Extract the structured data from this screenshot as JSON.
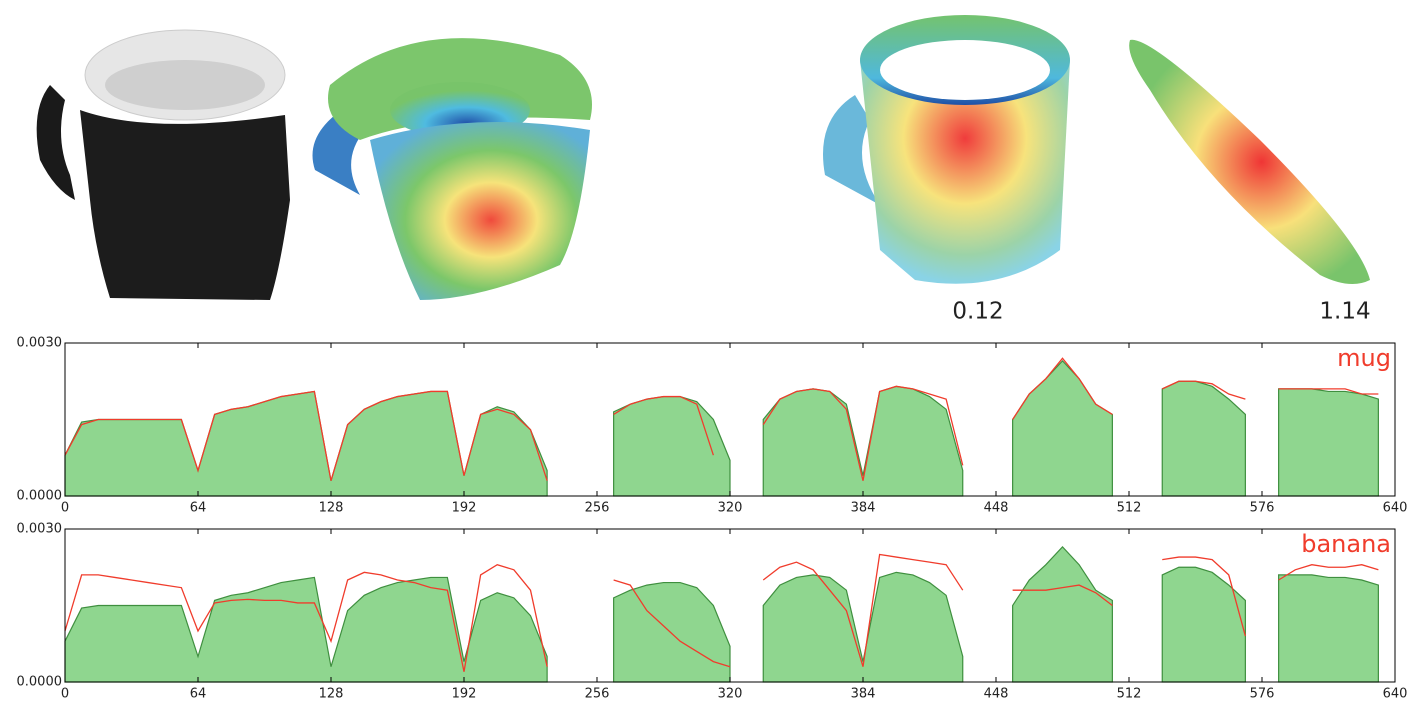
{
  "figure_labels": [
    "0.12",
    "1.14"
  ],
  "chart_data": [
    {
      "type": "area-line",
      "title": "mug",
      "title_color": "#f03c2c",
      "x": [
        0,
        8,
        16,
        24,
        32,
        40,
        48,
        56,
        64,
        72,
        80,
        88,
        96,
        104,
        112,
        120,
        128,
        136,
        144,
        152,
        160,
        168,
        176,
        184,
        192,
        200,
        208,
        216,
        224,
        232,
        240,
        248,
        256,
        264,
        272,
        280,
        288,
        296,
        304,
        312,
        320,
        328,
        336,
        344,
        352,
        360,
        368,
        376,
        384,
        392,
        400,
        408,
        416,
        424,
        432,
        440,
        448,
        456,
        464,
        472,
        480,
        488,
        496,
        504,
        512,
        520,
        528,
        536,
        544,
        552,
        560,
        568,
        576,
        584,
        592,
        600,
        608,
        616,
        624,
        632,
        640
      ],
      "series": [
        {
          "color": "#3f8f3f",
          "fill": "#8fd68f",
          "kind": "area",
          "values": [
            0.0008,
            0.00145,
            0.0015,
            0.0015,
            0.0015,
            0.0015,
            0.0015,
            0.0015,
            0.0005,
            0.0016,
            0.0017,
            0.00175,
            0.00185,
            0.00195,
            0.002,
            0.00205,
            0.0003,
            0.0014,
            0.0017,
            0.00185,
            0.00195,
            0.002,
            0.00205,
            0.00205,
            0.0004,
            0.0016,
            0.00175,
            0.00165,
            0.0013,
            0.0005,
            null,
            null,
            null,
            0.00165,
            0.0018,
            0.0019,
            0.00195,
            0.00195,
            0.00185,
            0.0015,
            0.0007,
            null,
            0.0015,
            0.0019,
            0.00205,
            0.0021,
            0.00205,
            0.0018,
            0.0004,
            0.00205,
            0.00215,
            0.0021,
            0.00195,
            0.0017,
            0.0005,
            null,
            null,
            0.0015,
            0.002,
            0.0023,
            0.00265,
            0.0023,
            0.0018,
            0.0016,
            null,
            null,
            0.0021,
            0.00225,
            0.00225,
            0.00215,
            0.0019,
            0.0016,
            null,
            0.0021,
            0.0021,
            0.0021,
            0.00205,
            0.00205,
            0.002,
            0.0019,
            null
          ]
        },
        {
          "color": "#f03c2c",
          "kind": "line",
          "values": [
            0.0008,
            0.0014,
            0.0015,
            0.0015,
            0.0015,
            0.0015,
            0.0015,
            0.0015,
            0.0005,
            0.0016,
            0.0017,
            0.00175,
            0.00185,
            0.00195,
            0.002,
            0.00205,
            0.0003,
            0.0014,
            0.0017,
            0.00185,
            0.00195,
            0.002,
            0.00205,
            0.00205,
            0.0004,
            0.0016,
            0.0017,
            0.0016,
            0.0013,
            0.0003,
            null,
            null,
            null,
            0.0016,
            0.0018,
            0.0019,
            0.00195,
            0.00195,
            0.0018,
            0.0008,
            null,
            null,
            0.0014,
            0.0019,
            0.00205,
            0.0021,
            0.00205,
            0.0017,
            0.0003,
            0.00205,
            0.00215,
            0.0021,
            0.002,
            0.0019,
            0.0006,
            null,
            null,
            0.0015,
            0.002,
            0.0023,
            0.0027,
            0.0023,
            0.0018,
            0.0016,
            null,
            null,
            0.0021,
            0.00225,
            0.00225,
            0.0022,
            0.002,
            0.0019,
            null,
            0.0021,
            0.0021,
            0.0021,
            0.0021,
            0.0021,
            0.002,
            0.002,
            null
          ]
        }
      ],
      "xlim": [
        0,
        640
      ],
      "xticks": [
        0,
        64,
        128,
        192,
        256,
        320,
        384,
        448,
        512,
        576,
        640
      ],
      "ylim": [
        0,
        0.003
      ],
      "yticks": [
        {
          "value": 0,
          "label": "0.0000"
        },
        {
          "value": 0.003,
          "label": "0.0030"
        }
      ]
    },
    {
      "type": "area-line",
      "title": "banana",
      "title_color": "#f03c2c",
      "x": [
        0,
        8,
        16,
        24,
        32,
        40,
        48,
        56,
        64,
        72,
        80,
        88,
        96,
        104,
        112,
        120,
        128,
        136,
        144,
        152,
        160,
        168,
        176,
        184,
        192,
        200,
        208,
        216,
        224,
        232,
        240,
        248,
        256,
        264,
        272,
        280,
        288,
        296,
        304,
        312,
        320,
        328,
        336,
        344,
        352,
        360,
        368,
        376,
        384,
        392,
        400,
        408,
        416,
        424,
        432,
        440,
        448,
        456,
        464,
        472,
        480,
        488,
        496,
        504,
        512,
        520,
        528,
        536,
        544,
        552,
        560,
        568,
        576,
        584,
        592,
        600,
        608,
        616,
        624,
        632,
        640
      ],
      "series": [
        {
          "color": "#3f8f3f",
          "fill": "#8fd68f",
          "kind": "area",
          "values": [
            0.0008,
            0.00145,
            0.0015,
            0.0015,
            0.0015,
            0.0015,
            0.0015,
            0.0015,
            0.0005,
            0.0016,
            0.0017,
            0.00175,
            0.00185,
            0.00195,
            0.002,
            0.00205,
            0.0003,
            0.0014,
            0.0017,
            0.00185,
            0.00195,
            0.002,
            0.00205,
            0.00205,
            0.0004,
            0.0016,
            0.00175,
            0.00165,
            0.0013,
            0.0005,
            null,
            null,
            null,
            0.00165,
            0.0018,
            0.0019,
            0.00195,
            0.00195,
            0.00185,
            0.0015,
            0.0007,
            null,
            0.0015,
            0.0019,
            0.00205,
            0.0021,
            0.00205,
            0.0018,
            0.0004,
            0.00205,
            0.00215,
            0.0021,
            0.00195,
            0.0017,
            0.0005,
            null,
            null,
            0.0015,
            0.002,
            0.0023,
            0.00265,
            0.0023,
            0.0018,
            0.0016,
            null,
            null,
            0.0021,
            0.00225,
            0.00225,
            0.00215,
            0.0019,
            0.0016,
            null,
            0.0021,
            0.0021,
            0.0021,
            0.00205,
            0.00205,
            0.002,
            0.0019,
            null
          ]
        },
        {
          "color": "#f03c2c",
          "kind": "line",
          "values": [
            0.001,
            0.0021,
            0.0021,
            0.00205,
            0.002,
            0.00195,
            0.0019,
            0.00185,
            0.001,
            0.00155,
            0.0016,
            0.00162,
            0.0016,
            0.0016,
            0.00155,
            0.00155,
            0.0008,
            0.002,
            0.00215,
            0.0021,
            0.002,
            0.00195,
            0.00185,
            0.0018,
            0.0002,
            0.0021,
            0.0023,
            0.0022,
            0.0018,
            0.0003,
            null,
            null,
            null,
            0.002,
            0.0019,
            0.0014,
            0.0011,
            0.0008,
            0.0006,
            0.0004,
            0.0003,
            null,
            0.002,
            0.00225,
            0.00235,
            0.0022,
            0.0018,
            0.0014,
            0.0003,
            0.0025,
            0.00245,
            0.0024,
            0.00235,
            0.0023,
            0.0018,
            null,
            null,
            0.0018,
            0.0018,
            0.0018,
            0.00185,
            0.0019,
            0.00175,
            0.0015,
            null,
            null,
            0.0024,
            0.00245,
            0.00245,
            0.0024,
            0.0021,
            0.0009,
            null,
            0.002,
            0.0022,
            0.0023,
            0.00225,
            0.00225,
            0.0023,
            0.0022,
            null
          ]
        }
      ],
      "xlim": [
        0,
        640
      ],
      "xticks": [
        0,
        64,
        128,
        192,
        256,
        320,
        384,
        448,
        512,
        576,
        640
      ],
      "ylim": [
        0,
        0.003
      ],
      "yticks": [
        {
          "value": 0,
          "label": "0.0000"
        },
        {
          "value": 0.003,
          "label": "0.0030"
        }
      ]
    }
  ]
}
